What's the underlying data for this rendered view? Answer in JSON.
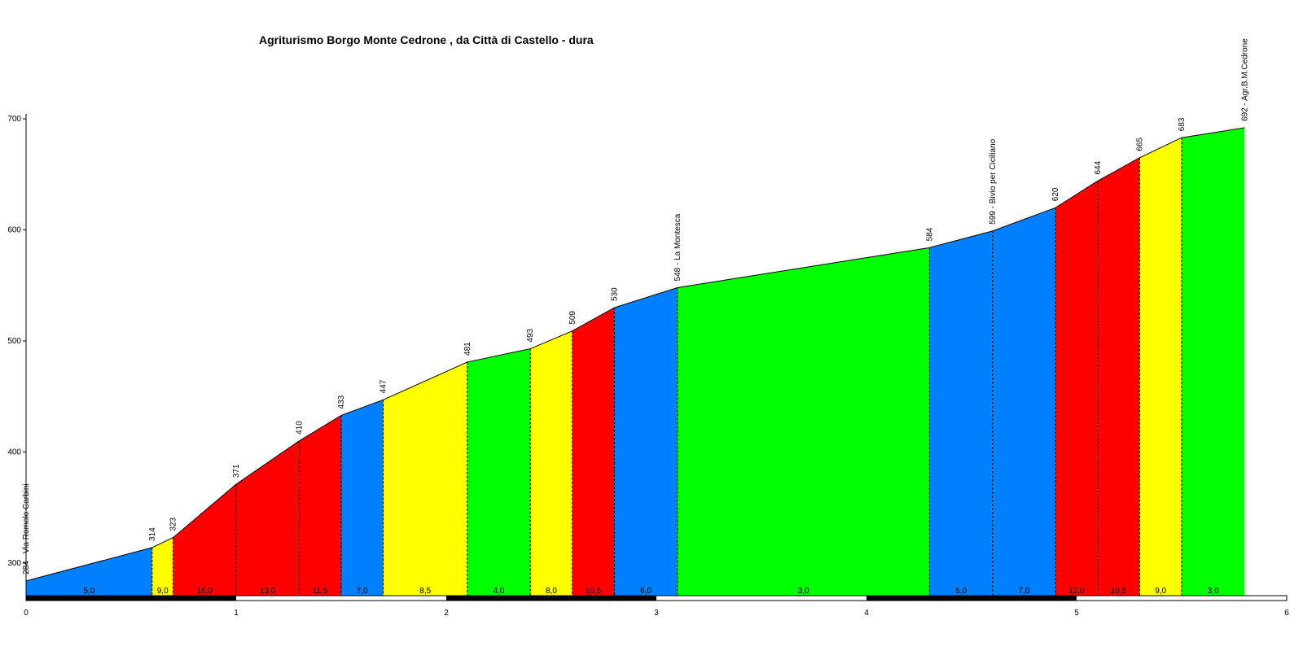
{
  "chart_data": {
    "type": "area",
    "title": "Agriturismo Borgo Monte Cedrone , da Città di Castello - dura",
    "xlabel": "",
    "ylabel": "",
    "xlim": [
      0,
      6
    ],
    "ylim": [
      270,
      700
    ],
    "x_ticks": [
      "0",
      "1",
      "2",
      "3",
      "4",
      "5",
      "6"
    ],
    "y_ticks": [
      "300",
      "400",
      "500",
      "600",
      "700"
    ],
    "grid": false,
    "colors": {
      "blue": "#0080ff",
      "yellow": "#ffff00",
      "red": "#ff0000",
      "green": "#00ff00"
    },
    "points": [
      {
        "x": 0.0,
        "elev": 284,
        "label": "284 - Via Romolo Carbini"
      },
      {
        "x": 0.6,
        "elev": 314,
        "label": "314"
      },
      {
        "x": 0.7,
        "elev": 323,
        "label": "323"
      },
      {
        "x": 1.0,
        "elev": 371,
        "label": "371"
      },
      {
        "x": 1.3,
        "elev": 410,
        "label": "410"
      },
      {
        "x": 1.5,
        "elev": 433,
        "label": "433"
      },
      {
        "x": 1.7,
        "elev": 447,
        "label": "447"
      },
      {
        "x": 2.1,
        "elev": 481,
        "label": "481"
      },
      {
        "x": 2.4,
        "elev": 493,
        "label": "493"
      },
      {
        "x": 2.6,
        "elev": 509,
        "label": "509"
      },
      {
        "x": 2.8,
        "elev": 530,
        "label": "530"
      },
      {
        "x": 3.1,
        "elev": 548,
        "label": "548 - La Montesca"
      },
      {
        "x": 4.3,
        "elev": 584,
        "label": "584"
      },
      {
        "x": 4.6,
        "elev": 599,
        "label": "599 - Bivio per Ciciliano"
      },
      {
        "x": 4.9,
        "elev": 620,
        "label": "620"
      },
      {
        "x": 5.1,
        "elev": 644,
        "label": "644"
      },
      {
        "x": 5.3,
        "elev": 665,
        "label": "665"
      },
      {
        "x": 5.5,
        "elev": 683,
        "label": "683"
      },
      {
        "x": 5.8,
        "elev": 692,
        "label": "692 - Agr.B.M.Cedrone"
      }
    ],
    "segments": [
      {
        "gradient": "5,0",
        "color": "blue"
      },
      {
        "gradient": "9,0",
        "color": "yellow"
      },
      {
        "gradient": "16,0",
        "color": "red"
      },
      {
        "gradient": "13,0",
        "color": "red"
      },
      {
        "gradient": "11,5",
        "color": "red"
      },
      {
        "gradient": "7,0",
        "color": "blue"
      },
      {
        "gradient": "8,5",
        "color": "yellow"
      },
      {
        "gradient": "4,0",
        "color": "green"
      },
      {
        "gradient": "8,0",
        "color": "yellow"
      },
      {
        "gradient": "10,5",
        "color": "red"
      },
      {
        "gradient": "6,0",
        "color": "blue"
      },
      {
        "gradient": "3,0",
        "color": "green"
      },
      {
        "gradient": "5,0",
        "color": "blue"
      },
      {
        "gradient": "7,0",
        "color": "blue"
      },
      {
        "gradient": "12,0",
        "color": "red"
      },
      {
        "gradient": "10,5",
        "color": "red"
      },
      {
        "gradient": "9,0",
        "color": "yellow"
      },
      {
        "gradient": "3,0",
        "color": "green"
      }
    ]
  }
}
